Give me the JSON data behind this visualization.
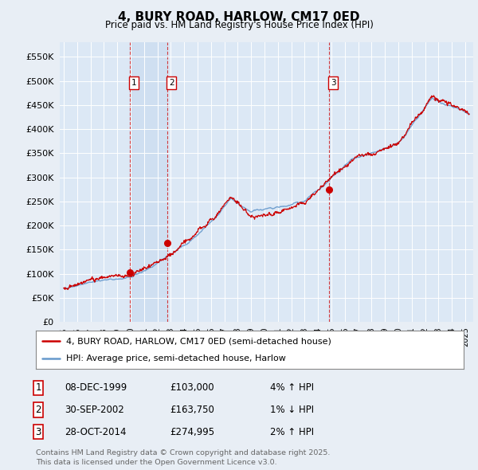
{
  "title": "4, BURY ROAD, HARLOW, CM17 0ED",
  "subtitle": "Price paid vs. HM Land Registry's House Price Index (HPI)",
  "ytick_values": [
    0,
    50000,
    100000,
    150000,
    200000,
    250000,
    300000,
    350000,
    400000,
    450000,
    500000,
    550000
  ],
  "ylim": [
    0,
    580000
  ],
  "xlim_start": 1994.7,
  "xlim_end": 2025.6,
  "bg_color": "#e8eef5",
  "plot_bg": "#dce8f5",
  "grid_color": "#ffffff",
  "sale_color": "#cc0000",
  "hpi_color": "#6699cc",
  "shade_color": "#ccddf0",
  "transactions": [
    {
      "date_num": 1999.93,
      "price": 103000,
      "label": "1",
      "date_str": "08-DEC-1999"
    },
    {
      "date_num": 2002.75,
      "price": 163750,
      "label": "2",
      "date_str": "30-SEP-2002"
    },
    {
      "date_num": 2014.82,
      "price": 274995,
      "label": "3",
      "date_str": "28-OCT-2014"
    }
  ],
  "shade_regions": [
    [
      1999.93,
      2002.75
    ]
  ],
  "legend_sale_label": "4, BURY ROAD, HARLOW, CM17 0ED (semi-detached house)",
  "legend_hpi_label": "HPI: Average price, semi-detached house, Harlow",
  "footer": "Contains HM Land Registry data © Crown copyright and database right 2025.\nThis data is licensed under the Open Government Licence v3.0.",
  "table_rows": [
    [
      "1",
      "08-DEC-1999",
      "£103,000",
      "4% ↑ HPI"
    ],
    [
      "2",
      "30-SEP-2002",
      "£163,750",
      "1% ↓ HPI"
    ],
    [
      "3",
      "28-OCT-2014",
      "£274,995",
      "2% ↑ HPI"
    ]
  ]
}
